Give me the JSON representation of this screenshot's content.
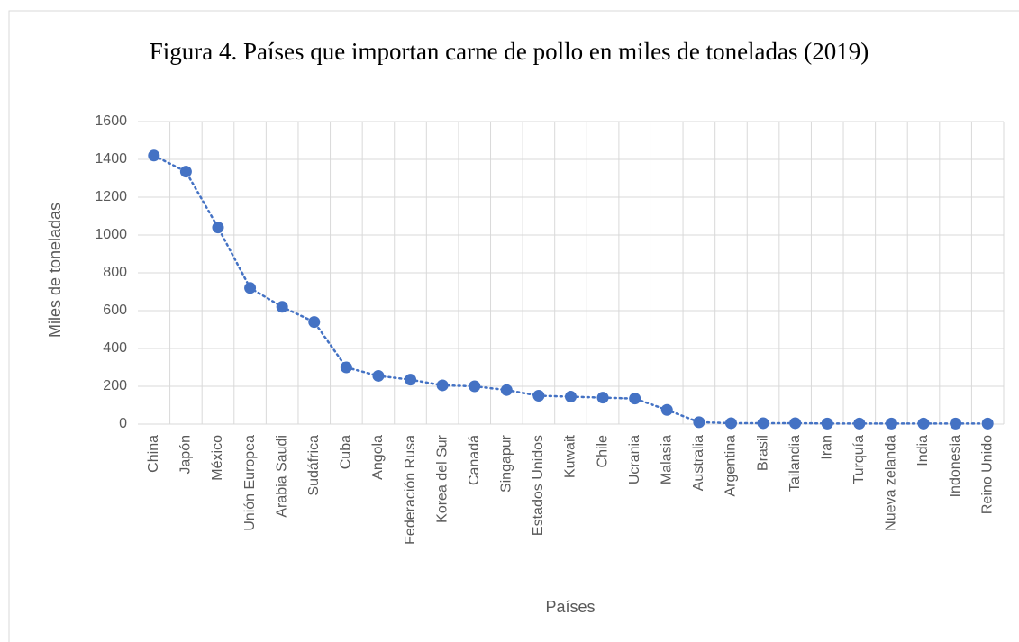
{
  "chart_data": {
    "type": "line",
    "title": "Figura 4. Países que importan carne de pollo en miles de toneladas (2019)",
    "x_label": "Países",
    "y_label": "Miles de toneladas",
    "categories": [
      "China",
      "Japón",
      "México",
      "Unión Europea",
      "Arabia Saudi",
      "Sudáfrica",
      "Cuba",
      "Angola",
      "Federación Rusa",
      "Korea del Sur",
      "Canadá",
      "Singapur",
      "Estados Unidos",
      "Kuwait",
      "Chile",
      "Ucrania",
      "Malasia",
      "Australia",
      "Argentina",
      "Brasil",
      "Tailandia",
      "Iran",
      "Turquía",
      "Nueva zelanda",
      "India",
      "Indonesia",
      "Reino Unido"
    ],
    "values": [
      1420,
      1335,
      1040,
      720,
      620,
      540,
      300,
      255,
      235,
      205,
      200,
      180,
      150,
      145,
      140,
      135,
      75,
      10,
      5,
      5,
      5,
      3,
      3,
      3,
      3,
      3,
      3
    ],
    "color": "#4472c4",
    "ylim": [
      0,
      1600
    ],
    "yticks": [
      0,
      200,
      400,
      600,
      800,
      1000,
      1200,
      1400,
      1600
    ],
    "grid": true
  }
}
